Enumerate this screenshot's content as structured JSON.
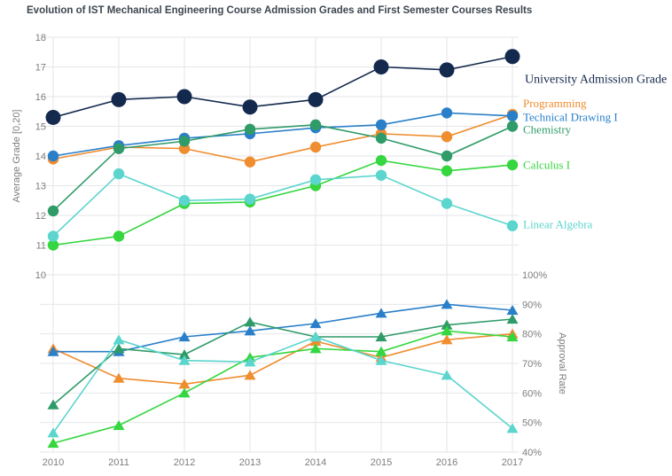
{
  "title": "Evolution of IST Mechanical Engineering Course Admission Grades and First Semester Courses Results",
  "axes": {
    "left_label": "Average Grade  [0,20]",
    "right_label": "Approval Rate",
    "x_ticks": [
      "2010",
      "2011",
      "2012",
      "2013",
      "2014",
      "2015",
      "2016",
      "2017"
    ],
    "grade_ticks": [
      "18",
      "17",
      "16",
      "15",
      "14",
      "13",
      "12",
      "11",
      "10"
    ],
    "rate_ticks": [
      "100%",
      "90%",
      "80%",
      "70%",
      "60%",
      "50%",
      "40%"
    ]
  },
  "chart_data": [
    {
      "type": "line",
      "name": "average-grade-chart",
      "title": "",
      "xlabel": "",
      "ylabel": "Average Grade [0,20]",
      "marker": "circle",
      "grid": true,
      "legend_position": "right-inline-labels",
      "x": [
        2010,
        2011,
        2012,
        2013,
        2014,
        2015,
        2016,
        2017
      ],
      "ylim": [
        10,
        18
      ],
      "series": [
        {
          "name": "University Admission Grade",
          "color": "#14294e",
          "size": 8.5,
          "label_y": 16.6,
          "values": [
            15.3,
            15.9,
            16.0,
            15.65,
            15.9,
            17.0,
            16.9,
            17.35
          ]
        },
        {
          "name": "Programming",
          "color": "#ef8d2f",
          "size": 6.2,
          "label_y": 15.78,
          "values": [
            13.9,
            14.3,
            14.25,
            13.8,
            14.3,
            14.75,
            14.65,
            15.4
          ]
        },
        {
          "name": "Technical Drawing I",
          "color": "#2a7fc9",
          "size": 6.2,
          "label_y": 15.32,
          "values": [
            14.0,
            14.35,
            14.6,
            14.75,
            14.95,
            15.05,
            15.45,
            15.35
          ]
        },
        {
          "name": "Chemistry",
          "color": "#2f9b68",
          "size": 6.2,
          "label_y": 14.9,
          "values": [
            12.15,
            14.25,
            14.5,
            14.9,
            15.05,
            14.6,
            14.0,
            15.0
          ]
        },
        {
          "name": "Calculus I",
          "color": "#35d63f",
          "size": 6.2,
          "label_y": 13.7,
          "values": [
            11.0,
            11.3,
            12.4,
            12.45,
            13.0,
            13.85,
            13.5,
            13.7
          ]
        },
        {
          "name": "Linear Algebra",
          "color": "#5bd5cd",
          "size": 6.2,
          "label_y": 11.7,
          "values": [
            11.3,
            13.4,
            12.5,
            12.55,
            13.2,
            13.35,
            12.4,
            11.65
          ]
        }
      ]
    },
    {
      "type": "line",
      "name": "approval-rate-chart",
      "title": "",
      "xlabel": "",
      "ylabel": "Approval Rate",
      "marker": "triangle",
      "grid": true,
      "unit": "%",
      "x": [
        2010,
        2011,
        2012,
        2013,
        2014,
        2015,
        2016,
        2017
      ],
      "ylim": [
        40,
        100
      ],
      "series": [
        {
          "name": "Programming",
          "color": "#ef8d2f",
          "values": [
            75,
            65,
            63,
            66,
            77.5,
            72,
            78,
            80
          ]
        },
        {
          "name": "Technical Drawing I",
          "color": "#2a7fc9",
          "values": [
            74,
            74,
            79,
            81,
            83.5,
            87,
            90,
            88
          ]
        },
        {
          "name": "Chemistry",
          "color": "#2f9b68",
          "values": [
            56,
            75,
            73,
            84,
            79,
            79,
            83,
            85
          ]
        },
        {
          "name": "Calculus I",
          "color": "#35d63f",
          "values": [
            43,
            49,
            60,
            72,
            75,
            74,
            81,
            79
          ]
        },
        {
          "name": "Linear Algebra",
          "color": "#5bd5cd",
          "values": [
            46.5,
            78,
            71,
            70.5,
            79,
            71,
            66,
            48
          ]
        }
      ]
    }
  ]
}
